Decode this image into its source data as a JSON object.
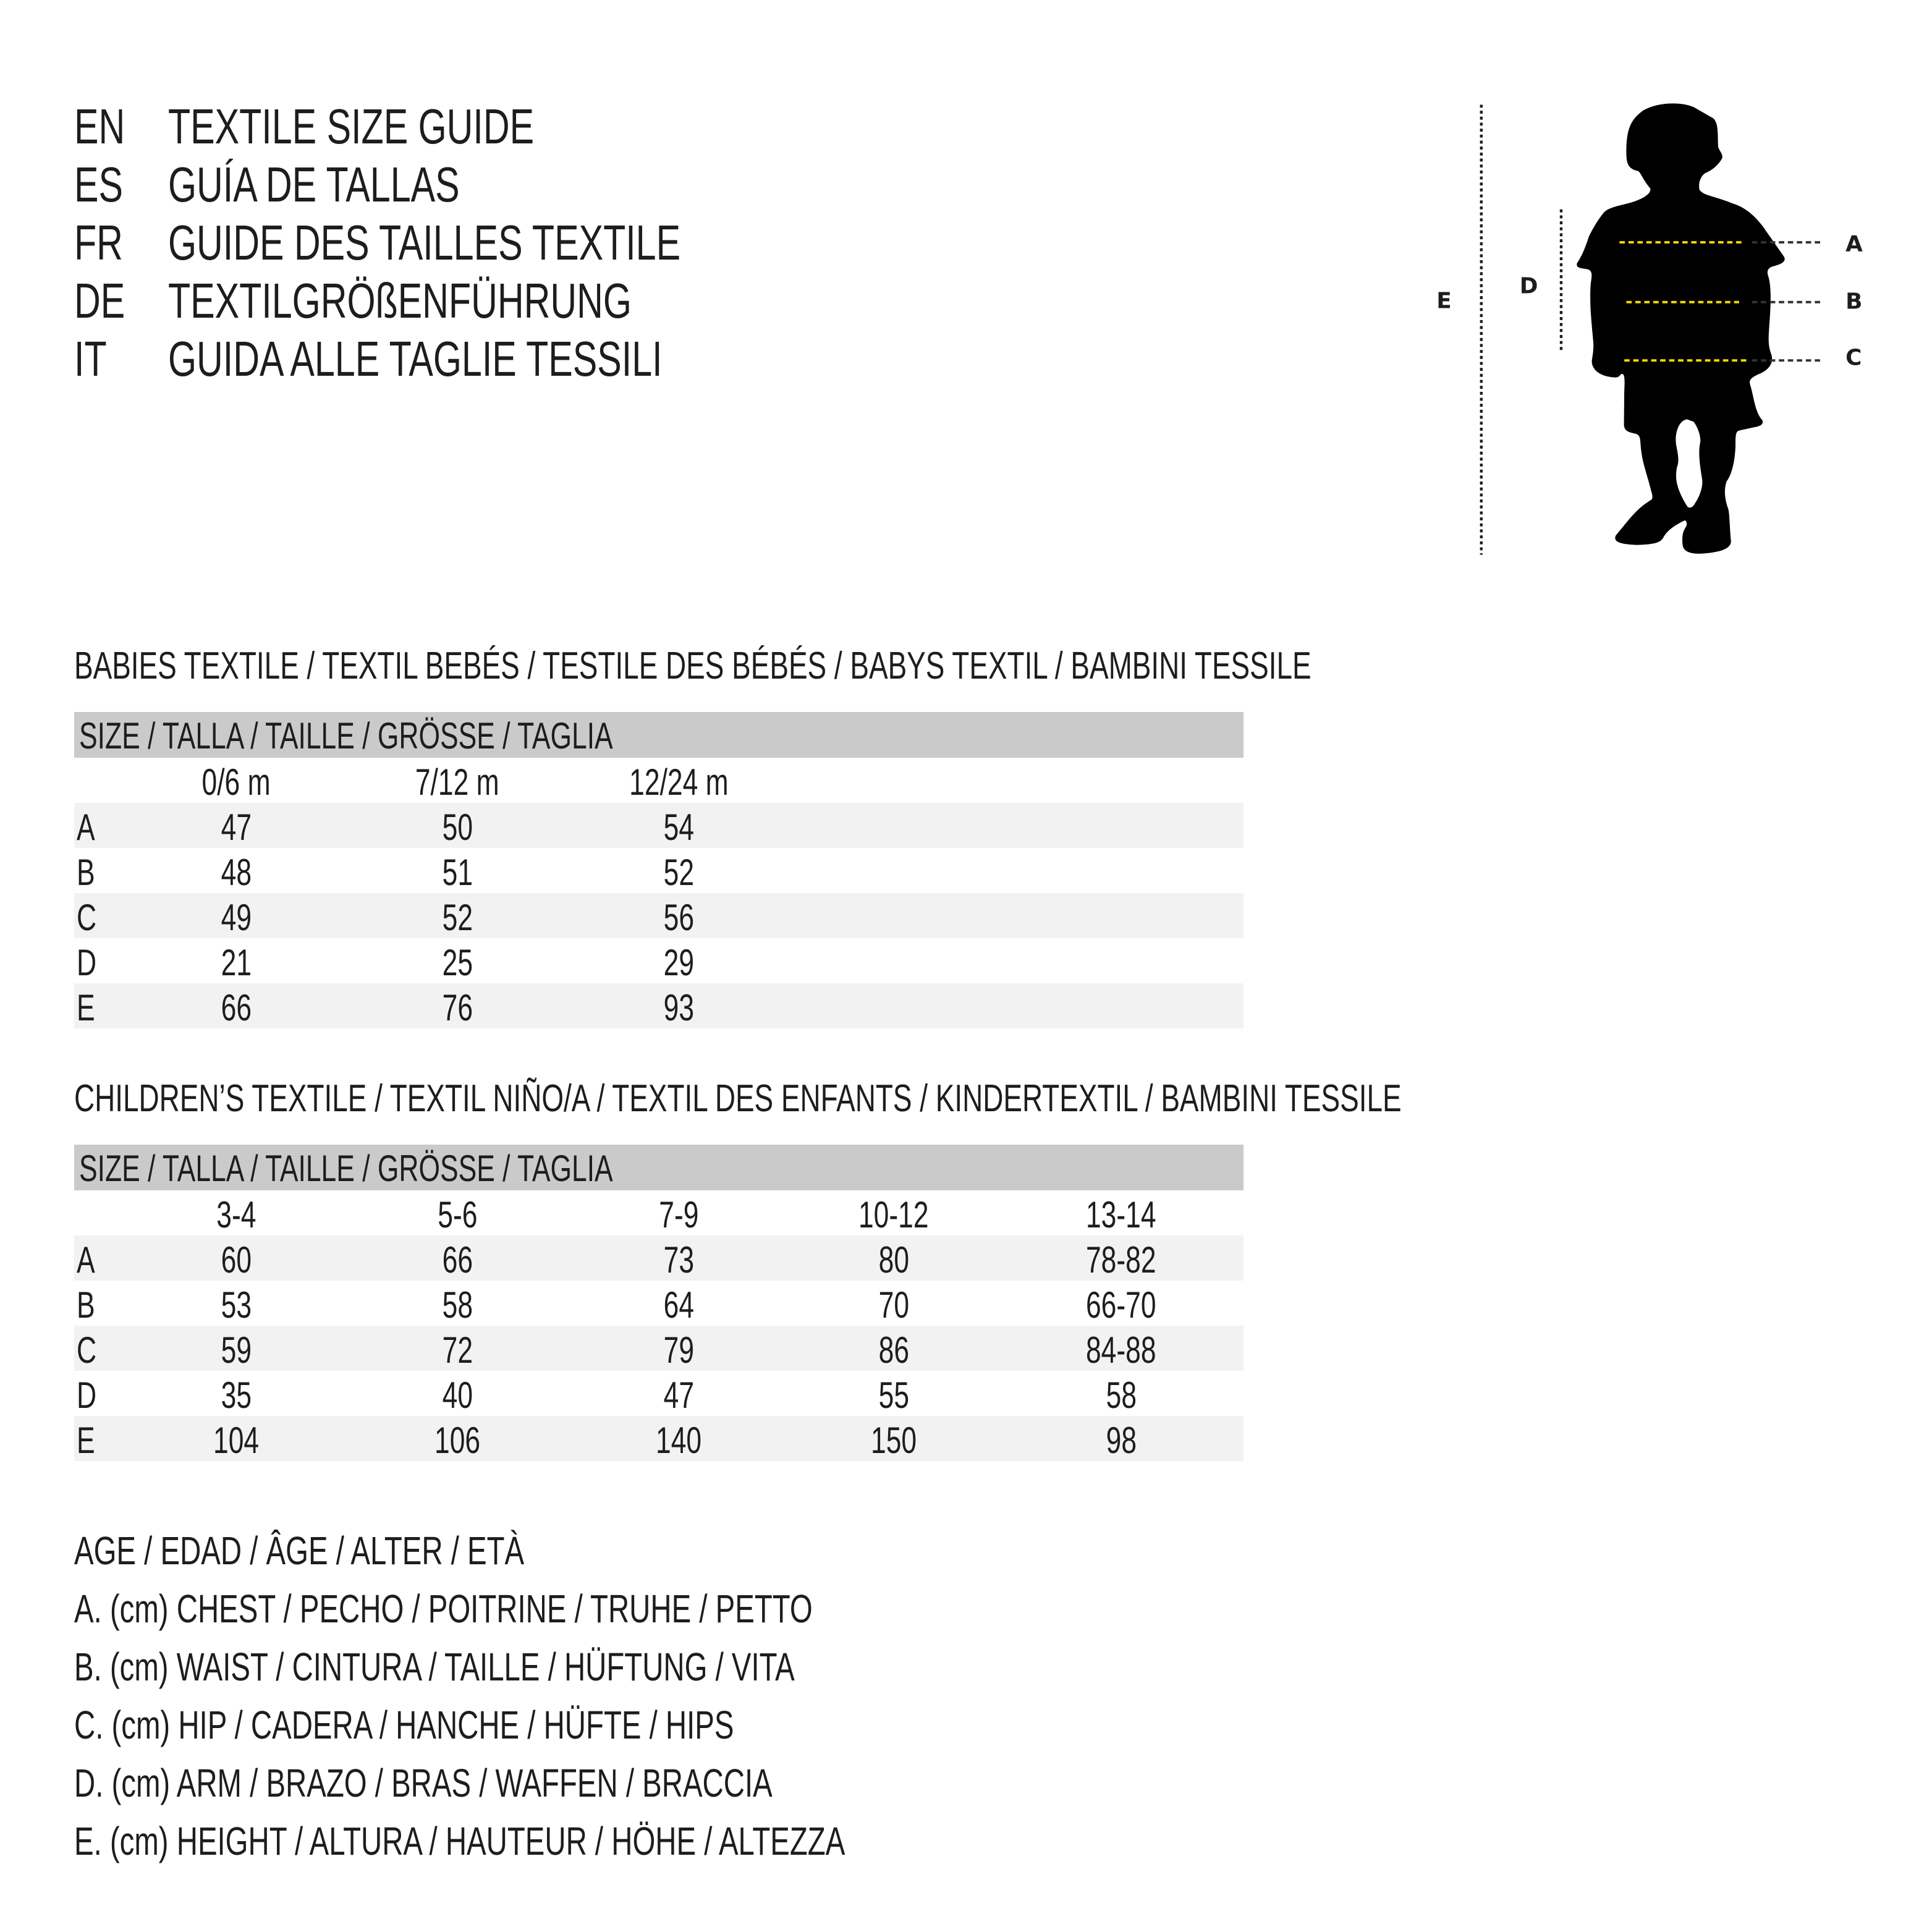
{
  "titles": [
    {
      "lang": "EN",
      "text": "TEXTILE SIZE GUIDE"
    },
    {
      "lang": "ES",
      "text": "GUÍA DE TALLAS"
    },
    {
      "lang": "FR",
      "text": "GUIDE DES TAILLES TEXTILE"
    },
    {
      "lang": "DE",
      "text": "TEXTILGRÖßENFÜHRUNG"
    },
    {
      "lang": "IT",
      "text": "GUIDA ALLE TAGLIE TESSILI"
    }
  ],
  "babies": {
    "heading": "BABIES TEXTILE / TEXTIL BEBÉS / TESTILE DES BÉBÉS / BABYS TEXTIL / BAMBINI TESSILE",
    "size_header": "SIZE / TALLA / TAILLE / GRÖSSE / TAGLIA",
    "columns": [
      "0/6 m",
      "7/12 m",
      "12/24 m"
    ],
    "rows": [
      {
        "label": "A",
        "values": [
          "47",
          "50",
          "54"
        ]
      },
      {
        "label": "B",
        "values": [
          "48",
          "51",
          "52"
        ]
      },
      {
        "label": "C",
        "values": [
          "49",
          "52",
          "56"
        ]
      },
      {
        "label": "D",
        "values": [
          "21",
          "25",
          "29"
        ]
      },
      {
        "label": "E",
        "values": [
          "66",
          "76",
          "93"
        ]
      }
    ]
  },
  "children": {
    "heading": "CHILDREN’S TEXTILE / TEXTIL NIÑO/A / TEXTIL DES ENFANTS / KINDERTEXTIL / BAMBINI TESSILE",
    "size_header": "SIZE / TALLA / TAILLE / GRÖSSE / TAGLIA",
    "columns": [
      "3-4",
      "5-6",
      "7-9",
      "10-12",
      "13-14"
    ],
    "rows": [
      {
        "label": "A",
        "values": [
          "60",
          "66",
          "73",
          "80",
          "78-82"
        ]
      },
      {
        "label": "B",
        "values": [
          "53",
          "58",
          "64",
          "70",
          "66-70"
        ]
      },
      {
        "label": "C",
        "values": [
          "59",
          "72",
          "79",
          "86",
          "84-88"
        ]
      },
      {
        "label": "D",
        "values": [
          "35",
          "40",
          "47",
          "55",
          "58"
        ]
      },
      {
        "label": "E",
        "values": [
          "104",
          "106",
          "140",
          "150",
          "98"
        ]
      }
    ]
  },
  "legend": [
    "AGE / EDAD / ÂGE / ALTER / ETÀ",
    "A. (cm) CHEST / PECHO / POITRINE / TRUHE / PETTO",
    "B. (cm) WAIST / CINTURA / TAILLE / HÜFTUNG / VITA",
    "C. (cm) HIP / CADERA / HANCHE / HÜFTE / HIPS",
    "D. (cm) ARM / BRAZO / BRAS / WAFFEN / BRACCIA",
    "E. (cm) HEIGHT / ALTURA / HAUTEUR / HÖHE / ALTEZZA"
  ],
  "figure": {
    "icon": "child-silhouette-icon",
    "labels": {
      "a": "A",
      "b": "B",
      "c": "C",
      "d": "D",
      "e": "E"
    },
    "colors": {
      "measure_line": "#f5d800",
      "silhouette": "#000000",
      "guide": "#1d1d1b"
    }
  }
}
